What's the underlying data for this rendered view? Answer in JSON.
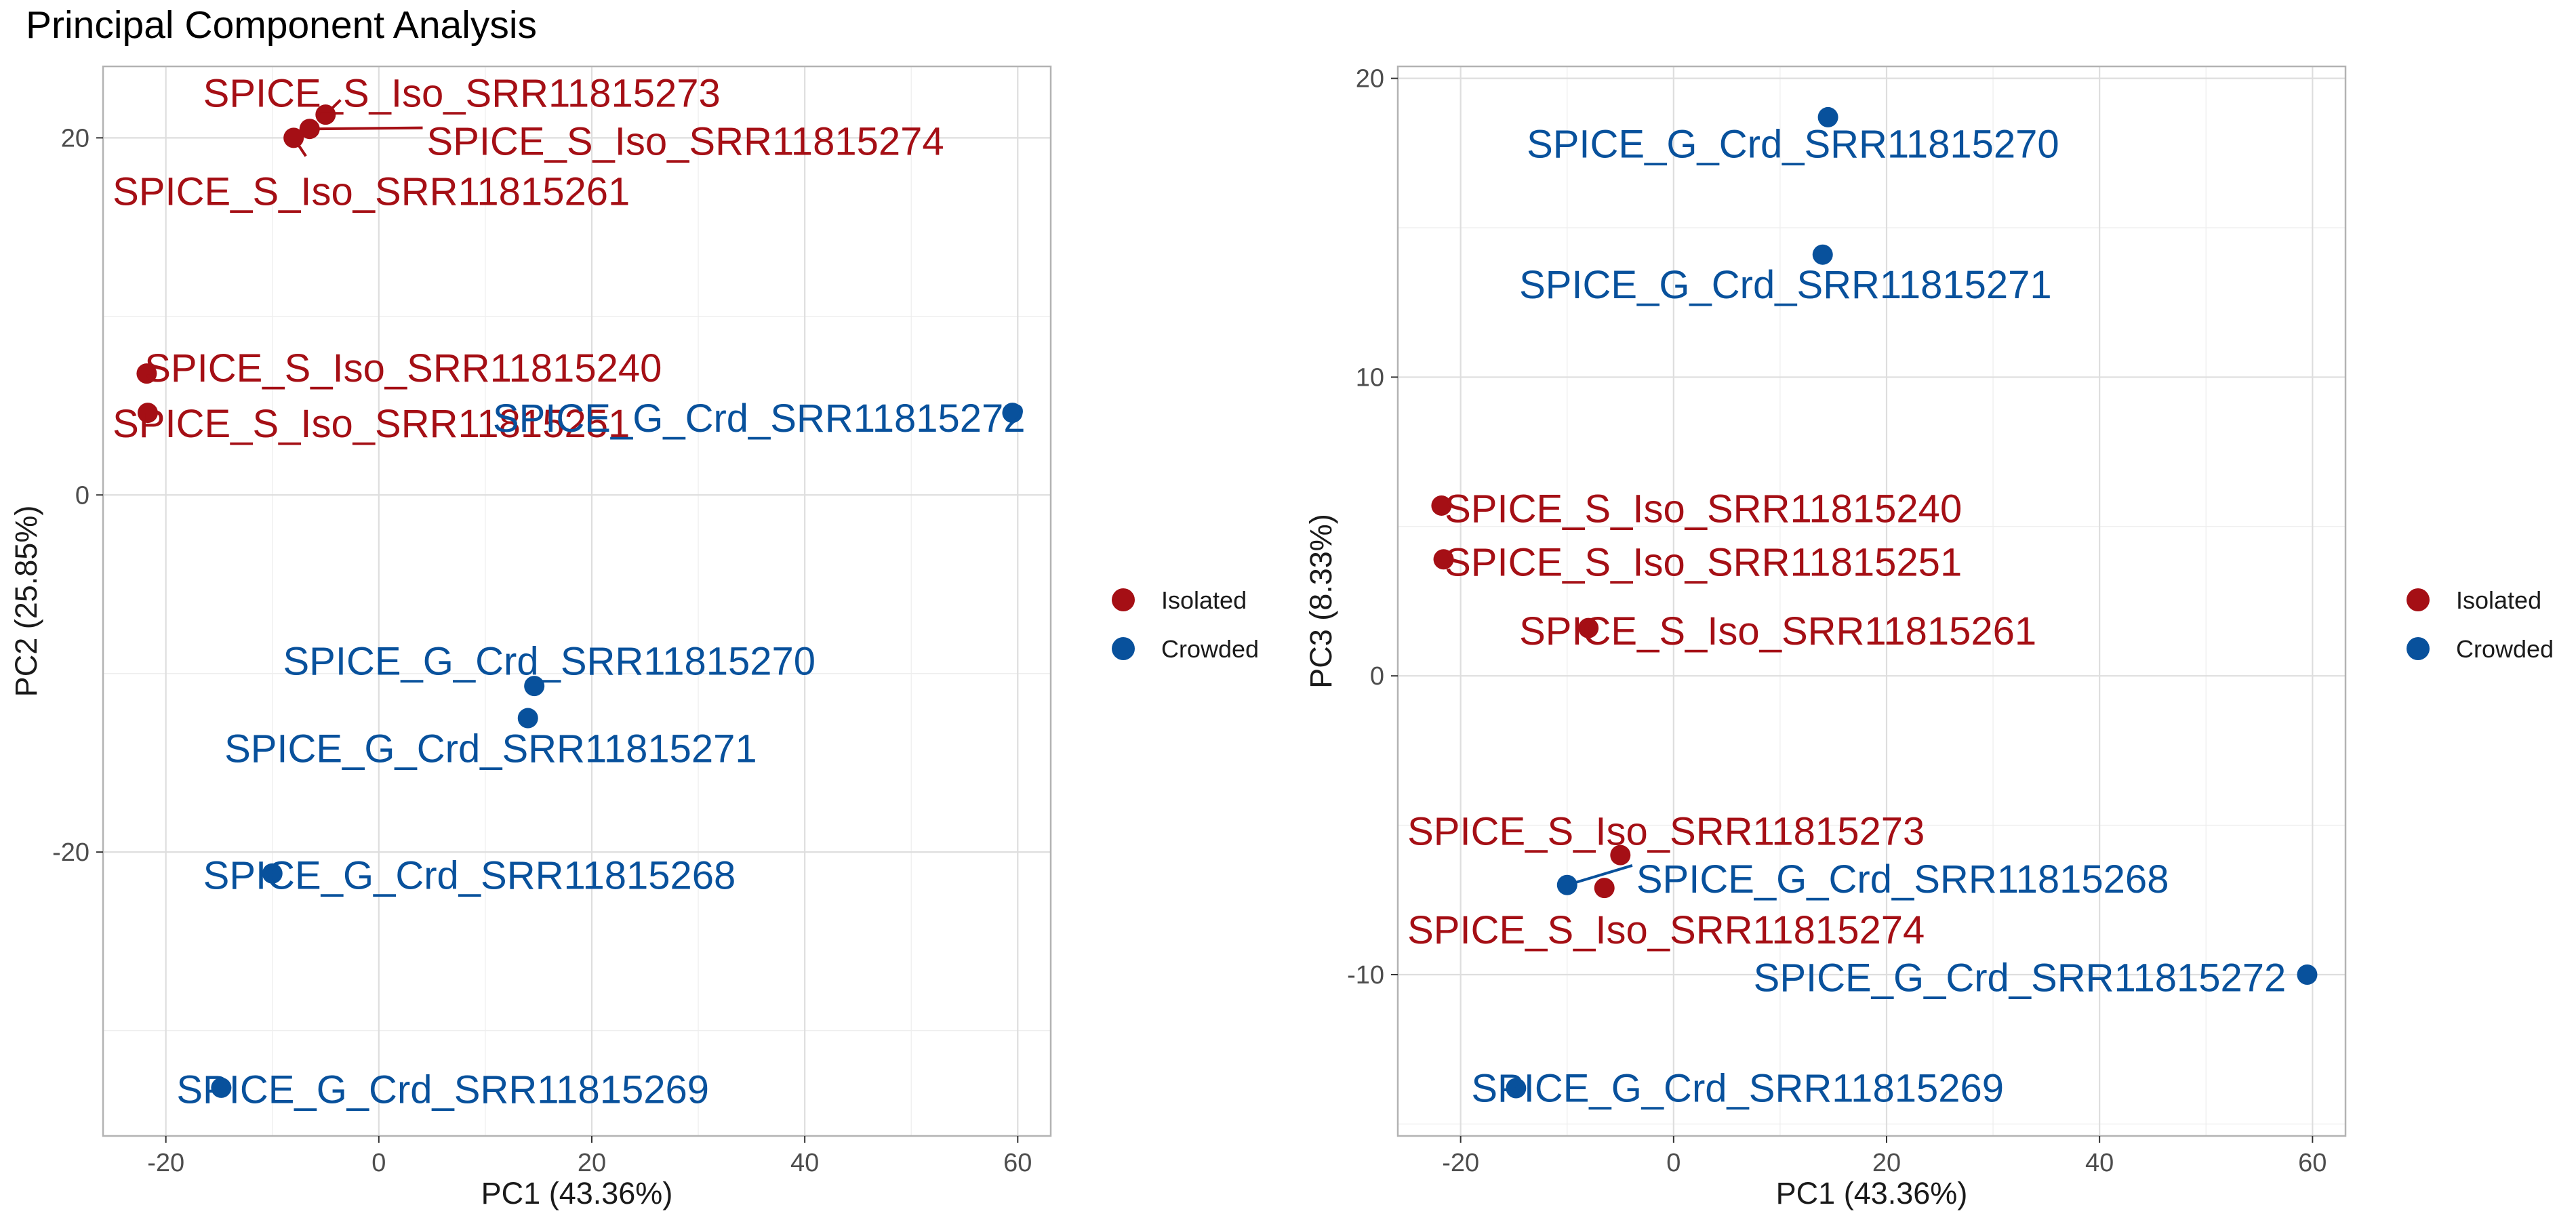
{
  "title": "Principal Component Analysis",
  "colors": {
    "Isolated": "#A50F15",
    "Crowded": "#08519C"
  },
  "chart_data": [
    {
      "type": "scatter",
      "id": "pc1-pc2",
      "xlabel": "PC1 (43.36%)",
      "ylabel": "PC2 (25.85%)",
      "xlim": [
        -25.9,
        63.1
      ],
      "ylim": [
        -35.9,
        24.0
      ],
      "xticks": [
        -20,
        0,
        20,
        40,
        60
      ],
      "yticks": [
        -20,
        0,
        20
      ],
      "xminor": [
        -10,
        10,
        30,
        50
      ],
      "yminor": [
        -30,
        -10,
        10
      ],
      "legend": {
        "position": "right",
        "entries": [
          "Isolated",
          "Crowded"
        ]
      },
      "points": [
        {
          "label": "SPICE_S_Iso_SRR11815273",
          "group": "Isolated",
          "x": -5.0,
          "y": 21.3,
          "lx": -16.5,
          "ly": 22.5,
          "anchor": "start",
          "leader": true
        },
        {
          "label": "SPICE_S_Iso_SRR11815274",
          "group": "Isolated",
          "x": -6.5,
          "y": 20.5,
          "lx": 4.5,
          "ly": 19.8,
          "anchor": "start",
          "leader": true
        },
        {
          "label": "SPICE_S_Iso_SRR11815261",
          "group": "Isolated",
          "x": -8.0,
          "y": 20.0,
          "lx": -25.0,
          "ly": 17.0,
          "anchor": "start",
          "leader": true
        },
        {
          "label": "SPICE_S_Iso_SRR11815240",
          "group": "Isolated",
          "x": -21.8,
          "y": 6.8,
          "lx": -22.0,
          "ly": 7.1,
          "anchor": "start",
          "leader": false
        },
        {
          "label": "SPICE_S_Iso_SRR11815251",
          "group": "Isolated",
          "x": -21.7,
          "y": 4.6,
          "lx": -25.0,
          "ly": 4.0,
          "anchor": "start",
          "leader": false
        },
        {
          "label": "SPICE_G_Crd_SRR11815272",
          "group": "Crowded",
          "x": 59.5,
          "y": 4.6,
          "lx": 10.7,
          "ly": 4.3,
          "anchor": "start",
          "leader": false
        },
        {
          "label": "SPICE_G_Crd_SRR11815270",
          "group": "Crowded",
          "x": 14.6,
          "y": -10.7,
          "lx": -9.0,
          "ly": -9.3,
          "anchor": "start",
          "leader": false
        },
        {
          "label": "SPICE_G_Crd_SRR11815271",
          "group": "Crowded",
          "x": 14.0,
          "y": -12.5,
          "lx": -14.5,
          "ly": -14.2,
          "anchor": "start",
          "leader": false
        },
        {
          "label": "SPICE_G_Crd_SRR11815268",
          "group": "Crowded",
          "x": -10.0,
          "y": -21.2,
          "lx": -16.5,
          "ly": -21.3,
          "anchor": "start",
          "leader": false
        },
        {
          "label": "SPICE_G_Crd_SRR11815269",
          "group": "Crowded",
          "x": -14.8,
          "y": -33.2,
          "lx": -19.0,
          "ly": -33.3,
          "anchor": "start",
          "leader": false
        }
      ]
    },
    {
      "type": "scatter",
      "id": "pc1-pc3",
      "xlabel": "PC1 (43.36%)",
      "ylabel": "PC3 (8.33%)",
      "xlim": [
        -25.9,
        63.1
      ],
      "ylim": [
        -15.4,
        20.4
      ],
      "xticks": [
        -20,
        0,
        20,
        40,
        60
      ],
      "yticks": [
        -10,
        0,
        10,
        20
      ],
      "xminor": [
        -10,
        10,
        30,
        50
      ],
      "yminor": [
        -15,
        -5,
        5,
        15
      ],
      "legend": {
        "position": "right",
        "entries": [
          "Isolated",
          "Crowded"
        ]
      },
      "points": [
        {
          "label": "SPICE_G_Crd_SRR11815270",
          "group": "Crowded",
          "x": 14.5,
          "y": 18.7,
          "lx": -13.8,
          "ly": 17.8,
          "anchor": "start",
          "leader": false
        },
        {
          "label": "SPICE_G_Crd_SRR11815271",
          "group": "Crowded",
          "x": 14.0,
          "y": 14.1,
          "lx": -14.5,
          "ly": 13.1,
          "anchor": "start",
          "leader": false
        },
        {
          "label": "SPICE_S_Iso_SRR11815240",
          "group": "Isolated",
          "x": -21.8,
          "y": 5.7,
          "lx": -21.5,
          "ly": 5.6,
          "anchor": "start",
          "leader": false
        },
        {
          "label": "SPICE_S_Iso_SRR11815251",
          "group": "Isolated",
          "x": -21.6,
          "y": 3.9,
          "lx": -21.5,
          "ly": 3.8,
          "anchor": "start",
          "leader": false
        },
        {
          "label": "SPICE_S_Iso_SRR11815261",
          "group": "Isolated",
          "x": -8.0,
          "y": 1.6,
          "lx": -14.5,
          "ly": 1.5,
          "anchor": "start",
          "leader": false
        },
        {
          "label": "SPICE_S_Iso_SRR11815273",
          "group": "Isolated",
          "x": -5.0,
          "y": -6.0,
          "lx": -25.0,
          "ly": -5.2,
          "anchor": "start",
          "leader": false
        },
        {
          "label": "SPICE_S_Iso_SRR11815274",
          "group": "Isolated",
          "x": -6.5,
          "y": -7.1,
          "lx": -25.0,
          "ly": -8.5,
          "anchor": "start",
          "leader": false
        },
        {
          "label": "SPICE_G_Crd_SRR11815268",
          "group": "Crowded",
          "x": -10.0,
          "y": -7.0,
          "lx": -3.5,
          "ly": -6.8,
          "anchor": "start",
          "leader": true
        },
        {
          "label": "SPICE_G_Crd_SRR11815272",
          "group": "Crowded",
          "x": 59.5,
          "y": -10.0,
          "lx": 7.5,
          "ly": -10.1,
          "anchor": "start",
          "leader": false
        },
        {
          "label": "SPICE_G_Crd_SRR11815269",
          "group": "Crowded",
          "x": -14.8,
          "y": -13.8,
          "lx": -19.0,
          "ly": -13.8,
          "anchor": "start",
          "leader": false
        }
      ]
    }
  ]
}
